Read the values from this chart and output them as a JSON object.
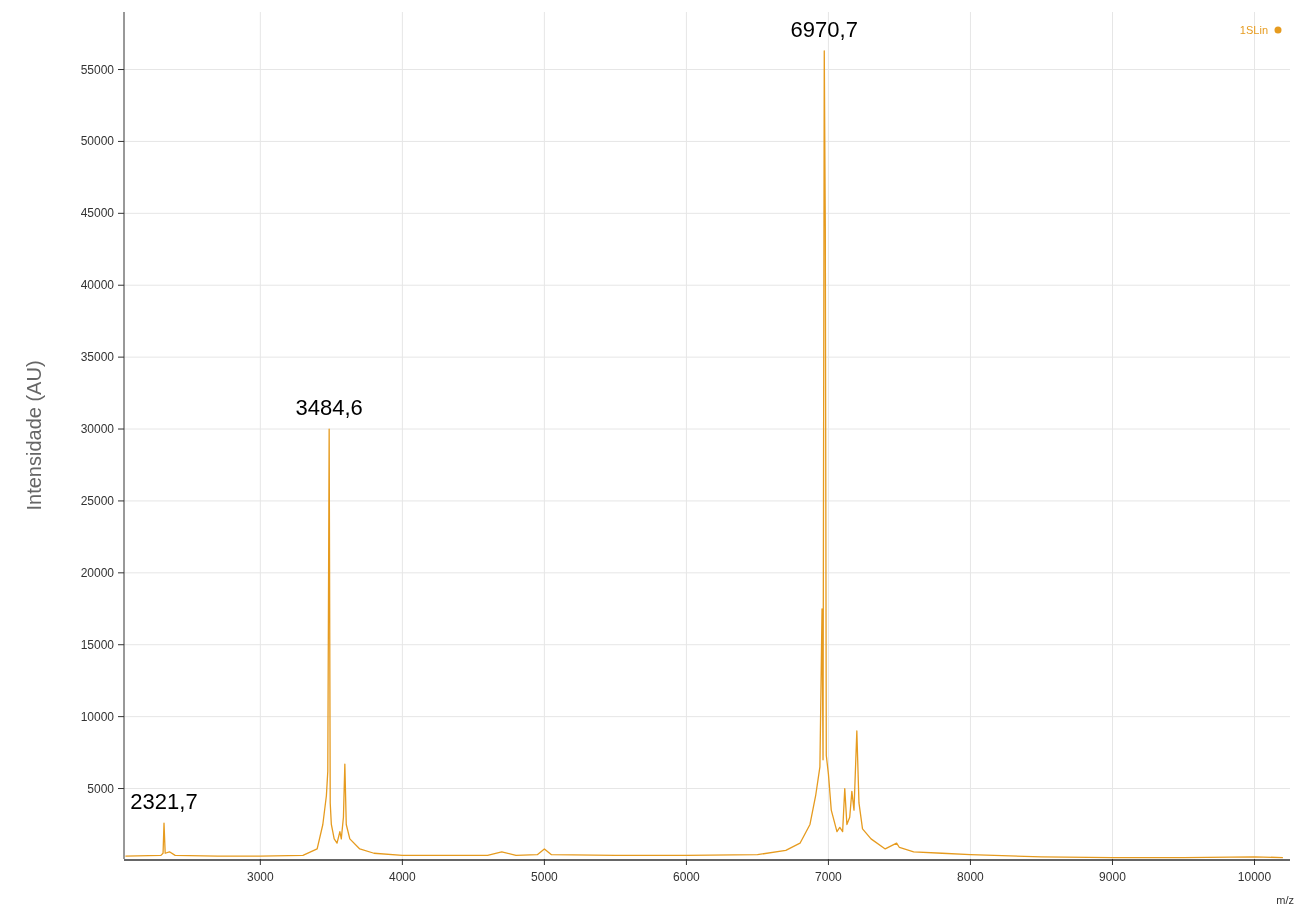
{
  "chart_data": {
    "type": "line",
    "xlabel": "m/z",
    "ylabel": "Intensidade (AU)",
    "xlim": [
      2040,
      10250
    ],
    "ylim": [
      100,
      59000
    ],
    "xticks": [
      3000,
      4000,
      5000,
      6000,
      7000,
      8000,
      9000,
      10000
    ],
    "yticks": [
      5000,
      10000,
      15000,
      20000,
      25000,
      30000,
      35000,
      40000,
      45000,
      50000,
      55000
    ],
    "grid": true,
    "legend": "top right",
    "marker": "none",
    "line_style": "solid",
    "series": [
      {
        "name": "1SLin",
        "color": "#e69b1f",
        "x": [
          2050,
          2300,
          2315,
          2321.7,
          2330,
          2360,
          2400,
          2700,
          3000,
          3300,
          3400,
          3440,
          3465,
          3475,
          3484.6,
          3492,
          3500,
          3520,
          3540,
          3560,
          3570,
          3585,
          3595,
          3605,
          3630,
          3700,
          3800,
          4000,
          4600,
          4700,
          4800,
          4950,
          5000,
          5050,
          5500,
          6000,
          6500,
          6700,
          6800,
          6870,
          6910,
          6940,
          6955,
          6962,
          6970.7,
          6978,
          6985,
          7000,
          7020,
          7060,
          7080,
          7100,
          7115,
          7130,
          7150,
          7165,
          7180,
          7200,
          7215,
          7240,
          7300,
          7400,
          7480,
          7500,
          7600,
          7800,
          8000,
          8500,
          9000,
          9500,
          10000,
          10200
        ],
        "values": [
          300,
          350,
          500,
          2600,
          500,
          600,
          350,
          300,
          300,
          350,
          800,
          2500,
          4500,
          6200,
          30000,
          4000,
          2500,
          1500,
          1200,
          2000,
          1500,
          3000,
          6700,
          2500,
          1500,
          800,
          500,
          350,
          350,
          600,
          350,
          400,
          800,
          400,
          350,
          350,
          400,
          700,
          1200,
          2500,
          4500,
          6500,
          17500,
          7000,
          56300,
          44000,
          7300,
          6000,
          3500,
          2000,
          2300,
          2000,
          5000,
          2500,
          3000,
          4800,
          3500,
          9000,
          4000,
          2200,
          1500,
          800,
          1200,
          900,
          600,
          500,
          400,
          250,
          200,
          200,
          250,
          200
        ]
      }
    ],
    "annotations": [
      {
        "text": "2321,7",
        "x": 2321.7,
        "y": 2600
      },
      {
        "text": "3484,6",
        "x": 3484.6,
        "y": 30000
      },
      {
        "text": "6970,7",
        "x": 6970.7,
        "y": 56300
      }
    ]
  }
}
